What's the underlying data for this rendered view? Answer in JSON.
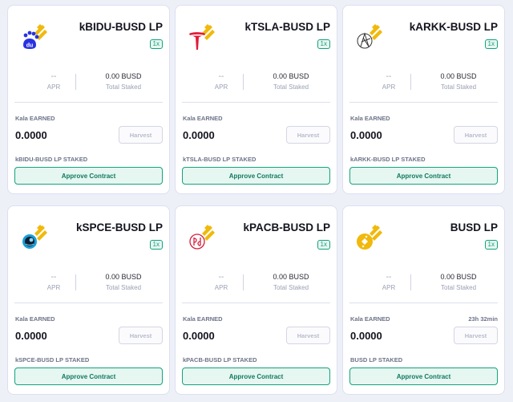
{
  "colors": {
    "accent_green": "#13a37c",
    "binance_yellow": "#f0b90b",
    "page_background": "#eef0f8"
  },
  "cards": [
    {
      "title": "kBIDU-BUSD LP",
      "icon": "baidu-icon",
      "multiplier": "1x",
      "apr_value": "--",
      "apr_label": "APR",
      "total_staked_value": "0.00 BUSD",
      "total_staked_label": "Total Staked",
      "earned_label": "Kala EARNED",
      "earned_value": "0.0000",
      "countdown": "",
      "harvest_label": "Harvest",
      "staked_label": "kBIDU-BUSD LP STAKED",
      "approve_label": "Approve Contract"
    },
    {
      "title": "kTSLA-BUSD LP",
      "icon": "tesla-icon",
      "multiplier": "1x",
      "apr_value": "--",
      "apr_label": "APR",
      "total_staked_value": "0.00 BUSD",
      "total_staked_label": "Total Staked",
      "earned_label": "Kala EARNED",
      "earned_value": "0.0000",
      "countdown": "",
      "harvest_label": "Harvest",
      "staked_label": "kTSLA-BUSD LP STAKED",
      "approve_label": "Approve Contract"
    },
    {
      "title": "kARKK-BUSD LP",
      "icon": "ark-invest-icon",
      "multiplier": "1x",
      "apr_value": "--",
      "apr_label": "APR",
      "total_staked_value": "0.00 BUSD",
      "total_staked_label": "Total Staked",
      "earned_label": "Kala EARNED",
      "earned_value": "0.0000",
      "countdown": "",
      "harvest_label": "Harvest",
      "staked_label": "kARKK-BUSD LP STAKED",
      "approve_label": "Approve Contract"
    },
    {
      "title": "kSPCE-BUSD LP",
      "icon": "virgin-galactic-icon",
      "multiplier": "1x",
      "apr_value": "--",
      "apr_label": "APR",
      "total_staked_value": "0.00 BUSD",
      "total_staked_label": "Total Staked",
      "earned_label": "Kala EARNED",
      "earned_value": "0.0000",
      "countdown": "",
      "harvest_label": "Harvest",
      "staked_label": "kSPCE-BUSD LP STAKED",
      "approve_label": "Approve Contract"
    },
    {
      "title": "kPACB-BUSD LP",
      "icon": "pacbio-icon",
      "multiplier": "1x",
      "apr_value": "--",
      "apr_label": "APR",
      "total_staked_value": "0.00 BUSD",
      "total_staked_label": "Total Staked",
      "earned_label": "Kala EARNED",
      "earned_value": "0.0000",
      "countdown": "",
      "harvest_label": "Harvest",
      "staked_label": "kPACB-BUSD LP STAKED",
      "approve_label": "Approve Contract"
    },
    {
      "title": "BUSD LP",
      "icon": "busd-icon",
      "multiplier": "1x",
      "apr_value": "--",
      "apr_label": "APR",
      "total_staked_value": "0.00 BUSD",
      "total_staked_label": "Total Staked",
      "earned_label": "Kala EARNED",
      "earned_value": "0.0000",
      "countdown": "23h 32min",
      "harvest_label": "Harvest",
      "staked_label": "BUSD LP STAKED",
      "approve_label": "Approve Contract"
    }
  ]
}
